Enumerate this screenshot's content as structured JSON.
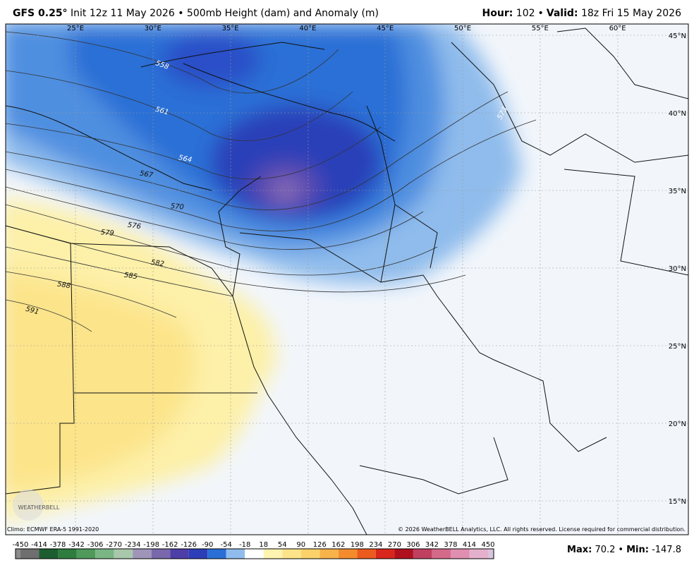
{
  "header": {
    "model": "GFS 0.25°",
    "description": "Init 12z 11 May 2026 • 500mb Height (dam) and Anomaly (m)",
    "hour_label": "Hour:",
    "hour": 102,
    "separator": "•",
    "valid_label": "Valid:",
    "valid": "18z Fri 15 May 2026"
  },
  "map": {
    "lon_labels": [
      "25°E",
      "30°E",
      "35°E",
      "40°E",
      "45°E",
      "50°E",
      "55°E",
      "60°E"
    ],
    "lat_labels": [
      "45°N",
      "40°N",
      "35°N",
      "30°N",
      "25°N",
      "20°N",
      "15°N"
    ],
    "contour_labels": [
      "558",
      "561",
      "564",
      "567",
      "570",
      "573",
      "576",
      "579",
      "582",
      "585",
      "588",
      "591"
    ],
    "logo": "WEATHERBELL"
  },
  "footer": {
    "climo": "Climo: ECMWF ERA-5 1991-2020",
    "copyright": "© 2026 WeatherBELL Analytics, LLC. All rights reserved. License required for commercial distribution."
  },
  "colorbar": {
    "labels": [
      -450,
      -414,
      -378,
      -342,
      -306,
      -270,
      -234,
      -198,
      -162,
      -126,
      -90,
      -54,
      -18,
      18,
      54,
      90,
      126,
      162,
      198,
      234,
      270,
      306,
      342,
      378,
      414,
      450
    ],
    "colors": [
      "#8c8c8c",
      "#6f6f6f",
      "#1d5e30",
      "#2e7d3e",
      "#4f9a5a",
      "#7ab585",
      "#a9c8ab",
      "#9e95b8",
      "#7a68ac",
      "#4e3ea8",
      "#2c3fb8",
      "#2a6fd6",
      "#8fbcec",
      "#ffffff",
      "#fff3b0",
      "#fde48a",
      "#fbd26a",
      "#f8b24a",
      "#f48c2e",
      "#ec5a1e",
      "#d8261c",
      "#b0101e",
      "#c04060",
      "#d46a8a",
      "#e08fb0",
      "#e4b0cc",
      "#d8c4dc"
    ]
  },
  "stats": {
    "max_label": "Max:",
    "max": 70.2,
    "separator": "•",
    "min_label": "Min:",
    "min": -147.8
  }
}
